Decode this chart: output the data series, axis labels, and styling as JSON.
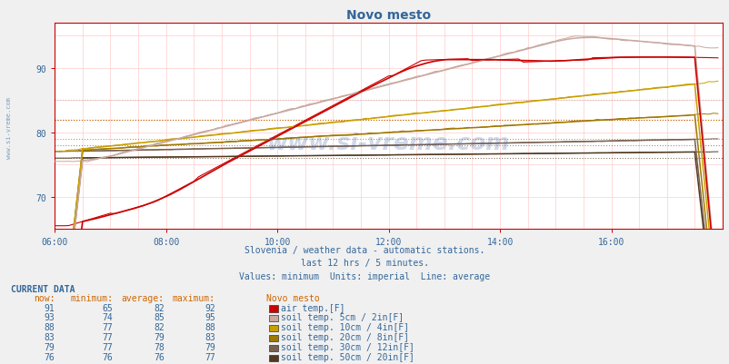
{
  "title": "Novo mesto",
  "subtitle1": "Slovenia / weather data - automatic stations.",
  "subtitle2": "last 12 hrs / 5 minutes.",
  "subtitle3": "Values: minimum  Units: imperial  Line: average",
  "current_data_title": "CURRENT DATA",
  "table_headers": [
    "now:",
    "minimum:",
    "average:",
    "maximum:",
    "Novo mesto"
  ],
  "table_rows": [
    [
      91,
      65,
      82,
      92,
      "air temp.[F]",
      "#cc0000"
    ],
    [
      93,
      74,
      85,
      95,
      "soil temp. 5cm / 2in[F]",
      "#c8a8a0"
    ],
    [
      88,
      77,
      82,
      88,
      "soil temp. 10cm / 4in[F]",
      "#c8a000"
    ],
    [
      83,
      77,
      79,
      83,
      "soil temp. 20cm / 8in[F]",
      "#a07800"
    ],
    [
      79,
      77,
      78,
      79,
      "soil temp. 30cm / 12in[F]",
      "#786050"
    ],
    [
      76,
      76,
      76,
      77,
      "soil temp. 50cm / 20in[F]",
      "#503820"
    ]
  ],
  "xmin": 0,
  "xmax": 144,
  "ymin": 65,
  "ymax": 97,
  "yticks": [
    70,
    80,
    90
  ],
  "xtick_labels": [
    "06:00",
    "08:00",
    "10:00",
    "12:00",
    "14:00",
    "16:00"
  ],
  "xtick_positions": [
    0,
    24,
    48,
    72,
    96,
    120
  ],
  "bg_color": "#f0f0f0",
  "plot_bg": "#ffffff",
  "grid_color": "#ffcccc",
  "watermark": "www.si-vreme.com",
  "avg_values": {
    "air_temp": 82,
    "soil_5cm": 85,
    "soil_10cm": 82,
    "soil_20cm": 79,
    "soil_30cm": 78,
    "soil_50cm": 76
  },
  "colors": {
    "air_temp": "#cc0000",
    "soil_5cm": "#c8a8a0",
    "soil_10cm": "#c8a000",
    "soil_20cm": "#a07800",
    "soil_30cm": "#786050",
    "soil_50cm": "#503820"
  }
}
